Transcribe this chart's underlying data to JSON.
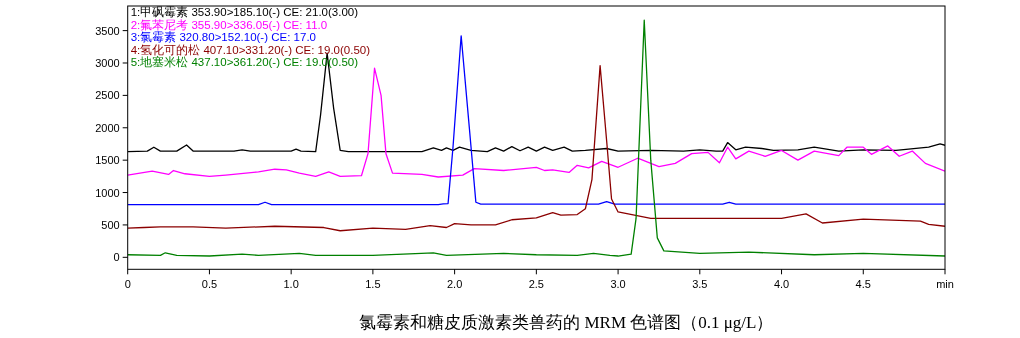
{
  "chart_data": {
    "type": "line",
    "title": "氯霉素和糖皮质激素类兽药的 MRM 色谱图（0.1 μg/L）",
    "xlim": [
      0,
      5.0
    ],
    "xticks": [
      0,
      {
        "value": 0.5,
        "label": "0.5"
      },
      {
        "value": 1,
        "label": "1.0"
      },
      {
        "value": 1.5,
        "label": "1.5"
      },
      {
        "value": 2,
        "label": "2.0"
      },
      {
        "value": 2.5,
        "label": "2.5"
      },
      {
        "value": 3,
        "label": "3.0"
      },
      {
        "value": 3.5,
        "label": "3.5"
      },
      {
        "value": 4,
        "label": "4.0"
      },
      {
        "value": 4.5,
        "label": "4.5"
      },
      {
        "value": 5,
        "label": "min"
      }
    ],
    "ylim": [
      -185,
      3880
    ],
    "yticks": [
      0,
      500,
      1000,
      1500,
      2000,
      2500,
      3000,
      3500
    ],
    "legend": "top left",
    "grid": false,
    "marker": "none",
    "line_style": "solid",
    "series": [
      {
        "name": "1:甲砜霉素 353.90>185.10(-) CE: 21.0(3.00)",
        "color": "#000000",
        "x": [
          0,
          0.12,
          0.16,
          0.2,
          0.3,
          0.36,
          0.4,
          0.65,
          0.7,
          0.75,
          1.0,
          1.03,
          1.06,
          1.15,
          1.18,
          1.22,
          1.26,
          1.3,
          1.35,
          1.8,
          1.87,
          1.92,
          1.95,
          1.99,
          2.03,
          2.1,
          2.2,
          2.25,
          2.3,
          2.35,
          2.4,
          2.45,
          2.5,
          2.55,
          2.6,
          2.67,
          2.72,
          2.8,
          2.93,
          3.0,
          3.2,
          3.4,
          3.5,
          3.6,
          3.64,
          3.67,
          3.72,
          3.78,
          3.88,
          3.95,
          4.1,
          4.2,
          4.35,
          4.5,
          4.7,
          4.9,
          4.97,
          5.0
        ],
        "values": [
          1632,
          1640,
          1700,
          1640,
          1640,
          1735,
          1640,
          1640,
          1660,
          1640,
          1640,
          1670,
          1640,
          1632,
          2200,
          3153,
          2300,
          1650,
          1632,
          1632,
          1690,
          1650,
          1690,
          1650,
          1700,
          1650,
          1632,
          1690,
          1640,
          1710,
          1645,
          1700,
          1640,
          1700,
          1650,
          1700,
          1640,
          1650,
          1680,
          1640,
          1650,
          1640,
          1660,
          1640,
          1640,
          1771,
          1660,
          1700,
          1680,
          1650,
          1660,
          1700,
          1640,
          1660,
          1650,
          1700,
          1750,
          1730
        ]
      },
      {
        "name": "2:氟苯尼考 355.90>336.05(-) CE: 11.0",
        "color": "#ff00ff",
        "x": [
          0,
          0.15,
          0.25,
          0.28,
          0.35,
          0.5,
          0.6,
          0.8,
          0.9,
          0.97,
          1.05,
          1.15,
          1.23,
          1.3,
          1.43,
          1.47,
          1.51,
          1.55,
          1.58,
          1.62,
          1.8,
          1.9,
          2.05,
          2.12,
          2.3,
          2.5,
          2.55,
          2.6,
          2.7,
          2.75,
          2.82,
          2.9,
          3.0,
          3.12,
          3.25,
          3.35,
          3.45,
          3.55,
          3.62,
          3.67,
          3.72,
          3.8,
          3.9,
          4.0,
          4.1,
          4.2,
          4.35,
          4.4,
          4.5,
          4.55,
          4.65,
          4.72,
          4.8,
          4.88,
          5.0
        ],
        "values": [
          1270,
          1330,
          1280,
          1340,
          1290,
          1250,
          1270,
          1320,
          1360,
          1350,
          1300,
          1250,
          1320,
          1250,
          1260,
          1600,
          2920,
          2500,
          1600,
          1300,
          1280,
          1240,
          1270,
          1370,
          1340,
          1390,
          1340,
          1350,
          1310,
          1420,
          1380,
          1480,
          1390,
          1530,
          1400,
          1450,
          1600,
          1620,
          1460,
          1700,
          1520,
          1640,
          1560,
          1650,
          1500,
          1640,
          1570,
          1700,
          1700,
          1590,
          1720,
          1560,
          1640,
          1450,
          1330
        ]
      },
      {
        "name": "3:氯霉素 320.80>152.10(-) CE: 17.0",
        "color": "#0000ff",
        "x": [
          0,
          0.8,
          0.84,
          0.88,
          1.9,
          1.93,
          1.96,
          1.99,
          2.04,
          2.09,
          2.13,
          2.16,
          2.88,
          2.93,
          2.98,
          3.64,
          3.68,
          3.72,
          5.0
        ],
        "values": [
          815,
          815,
          850,
          815,
          815,
          825,
          830,
          1700,
          3420,
          2000,
          850,
          820,
          820,
          860,
          820,
          820,
          850,
          820,
          820
        ]
      },
      {
        "name": "4:氢化可的松 407.10>331.20(-) CE: 19.0(0.50)",
        "color": "#8b0000",
        "x": [
          0,
          0.1,
          0.2,
          0.4,
          0.6,
          0.9,
          1.2,
          1.3,
          1.5,
          1.7,
          1.85,
          1.95,
          2.0,
          2.1,
          2.25,
          2.35,
          2.5,
          2.6,
          2.65,
          2.75,
          2.8,
          2.84,
          2.89,
          2.93,
          2.96,
          3.0,
          3.1,
          3.2,
          3.4,
          3.7,
          4.0,
          4.15,
          4.25,
          4.5,
          4.85,
          4.9,
          5.0
        ],
        "values": [
          450,
          460,
          470,
          470,
          450,
          480,
          460,
          410,
          450,
          430,
          490,
          460,
          520,
          500,
          500,
          580,
          610,
          690,
          650,
          660,
          750,
          1200,
          2960,
          1800,
          900,
          700,
          650,
          600,
          600,
          600,
          600,
          670,
          530,
          590,
          560,
          510,
          480
        ]
      },
      {
        "name": "5:地塞米松 437.10>361.20(-) CE: 19.0(0.50)",
        "color": "#008000",
        "x": [
          0,
          0.2,
          0.23,
          0.3,
          0.5,
          0.7,
          0.8,
          1.05,
          1.15,
          1.5,
          1.87,
          1.95,
          2.3,
          2.5,
          2.75,
          2.85,
          2.95,
          3.0,
          3.08,
          3.11,
          3.16,
          3.2,
          3.24,
          3.28,
          3.5,
          3.8,
          4.2,
          4.5,
          5.0
        ],
        "values": [
          40,
          30,
          70,
          30,
          20,
          50,
          30,
          60,
          30,
          30,
          70,
          30,
          60,
          40,
          30,
          60,
          30,
          20,
          50,
          600,
          3660,
          1500,
          300,
          100,
          60,
          80,
          40,
          60,
          20
        ]
      }
    ]
  }
}
